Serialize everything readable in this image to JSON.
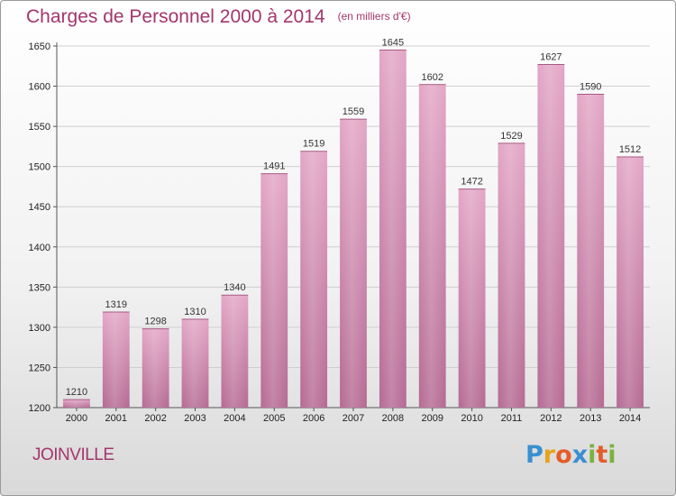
{
  "header": {
    "title": "Charges de Personnel 2000 à 2014",
    "unit": "(en milliers d'€)"
  },
  "city": "JOINVILLE",
  "logo_text": [
    "P",
    "r",
    "o",
    "x",
    "i",
    "t",
    "i"
  ],
  "chart_data": {
    "type": "bar",
    "title": "Charges de Personnel 2000 à 2014",
    "subtitle": "(en milliers d'€)",
    "categories": [
      "2000",
      "2001",
      "2002",
      "2003",
      "2004",
      "2005",
      "2006",
      "2007",
      "2008",
      "2009",
      "2010",
      "2011",
      "2012",
      "2013",
      "2014"
    ],
    "values": [
      1210,
      1319,
      1298,
      1310,
      1340,
      1491,
      1519,
      1559,
      1645,
      1602,
      1472,
      1529,
      1627,
      1590,
      1512
    ],
    "ylim": [
      1200,
      1650
    ],
    "yticks": [
      1200,
      1250,
      1300,
      1350,
      1400,
      1450,
      1500,
      1550,
      1600,
      1650
    ],
    "grid": true,
    "bar_color": "#c67aa3"
  }
}
